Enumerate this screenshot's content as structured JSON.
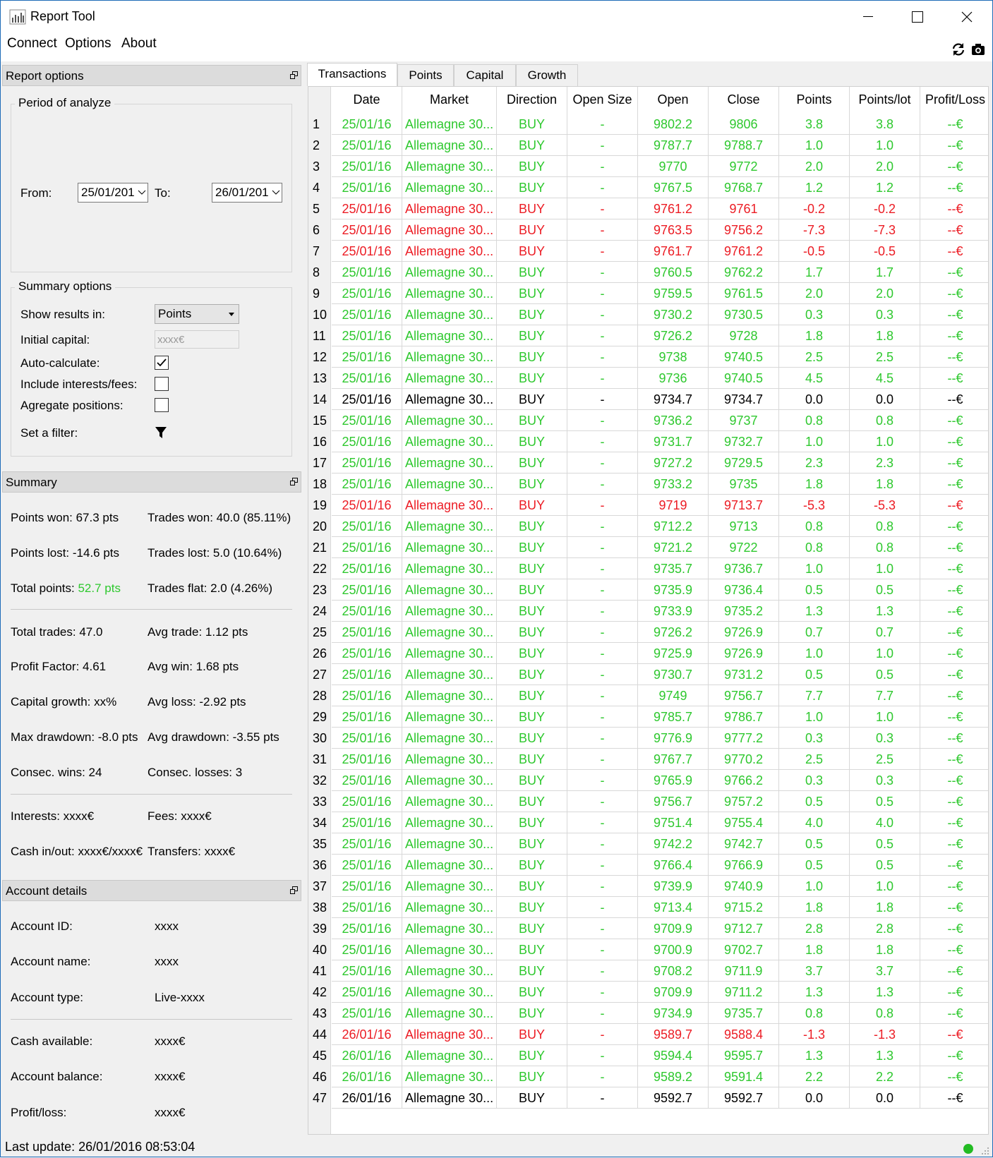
{
  "window": {
    "title": "Report Tool"
  },
  "menu": {
    "connect": "Connect",
    "options": "Options",
    "about": "About"
  },
  "report_options": {
    "title": "Report options",
    "period_group": "Period of analyze",
    "from_label": "From:",
    "from_value": "25/01/201",
    "to_label": "To:",
    "to_value": "26/01/201",
    "summary_group": "Summary options",
    "show_results_label": "Show results in:",
    "show_results_value": "Points",
    "initial_capital_label": "Initial capital:",
    "initial_capital_placeholder": "xxxx€",
    "auto_calculate_label": "Auto-calculate:",
    "auto_calculate_checked": true,
    "include_interests_label": "Include interests/fees:",
    "include_interests_checked": false,
    "agregate_label": "Agregate positions:",
    "agregate_checked": false,
    "filter_label": "Set a filter:"
  },
  "summary": {
    "title": "Summary",
    "points_won": "Points won: 67.3 pts",
    "trades_won": "Trades won: 40.0 (85.11%)",
    "points_lost": "Points lost: -14.6 pts",
    "trades_lost": "Trades lost: 5.0 (10.64%)",
    "total_points_label": "Total points: ",
    "total_points_value": "52.7 pts",
    "trades_flat": "Trades flat: 2.0 (4.26%)",
    "total_trades": "Total trades: 47.0",
    "avg_trade": "Avg trade: 1.12 pts",
    "profit_factor": "Profit Factor: 4.61",
    "avg_win": "Avg win: 1.68 pts",
    "capital_growth": "Capital growth: xx%",
    "avg_loss": "Avg loss: -2.92 pts",
    "max_drawdown": "Max drawdown: -8.0 pts",
    "avg_drawdown": "Avg drawdown: -3.55 pts",
    "consec_wins": "Consec. wins: 24",
    "consec_losses": "Consec. losses: 3",
    "interests": "Interests: xxxx€",
    "fees": "Fees: xxxx€",
    "cash_inout": "Cash in/out: xxxx€/xxxx€",
    "transfers": "Transfers: xxxx€"
  },
  "account": {
    "title": "Account details",
    "id_label": "Account ID:",
    "id_value": "xxxx",
    "name_label": "Account name:",
    "name_value": "xxxx",
    "type_label": "Account type:",
    "type_value": "Live-xxxx",
    "cash_label": "Cash available:",
    "cash_value": "xxxx€",
    "balance_label": "Account balance:",
    "balance_value": "xxxx€",
    "pl_label": "Profit/loss:",
    "pl_value": "xxxx€"
  },
  "tabs": [
    "Transactions",
    "Points",
    "Capital",
    "Growth"
  ],
  "colors": {
    "win": "#2ec82e",
    "loss": "#ec1c24",
    "flat": "#000000",
    "status_ok": "#22bb22"
  },
  "table": {
    "headers": [
      "Date",
      "Market",
      "Direction",
      "Open Size",
      "Open",
      "Close",
      "Points",
      "Points/lot",
      "Profit/Loss"
    ],
    "rows": [
      [
        "1",
        "25/01/16",
        "Allemagne 30...",
        "BUY",
        "-",
        "9802.2",
        "9806",
        "3.8",
        "3.8",
        "--€",
        "win"
      ],
      [
        "2",
        "25/01/16",
        "Allemagne 30...",
        "BUY",
        "-",
        "9787.7",
        "9788.7",
        "1.0",
        "1.0",
        "--€",
        "win"
      ],
      [
        "3",
        "25/01/16",
        "Allemagne 30...",
        "BUY",
        "-",
        "9770",
        "9772",
        "2.0",
        "2.0",
        "--€",
        "win"
      ],
      [
        "4",
        "25/01/16",
        "Allemagne 30...",
        "BUY",
        "-",
        "9767.5",
        "9768.7",
        "1.2",
        "1.2",
        "--€",
        "win"
      ],
      [
        "5",
        "25/01/16",
        "Allemagne 30...",
        "BUY",
        "-",
        "9761.2",
        "9761",
        "-0.2",
        "-0.2",
        "--€",
        "loss"
      ],
      [
        "6",
        "25/01/16",
        "Allemagne 30...",
        "BUY",
        "-",
        "9763.5",
        "9756.2",
        "-7.3",
        "-7.3",
        "--€",
        "loss"
      ],
      [
        "7",
        "25/01/16",
        "Allemagne 30...",
        "BUY",
        "-",
        "9761.7",
        "9761.2",
        "-0.5",
        "-0.5",
        "--€",
        "loss"
      ],
      [
        "8",
        "25/01/16",
        "Allemagne 30...",
        "BUY",
        "-",
        "9760.5",
        "9762.2",
        "1.7",
        "1.7",
        "--€",
        "win"
      ],
      [
        "9",
        "25/01/16",
        "Allemagne 30...",
        "BUY",
        "-",
        "9759.5",
        "9761.5",
        "2.0",
        "2.0",
        "--€",
        "win"
      ],
      [
        "10",
        "25/01/16",
        "Allemagne 30...",
        "BUY",
        "-",
        "9730.2",
        "9730.5",
        "0.3",
        "0.3",
        "--€",
        "win"
      ],
      [
        "11",
        "25/01/16",
        "Allemagne 30...",
        "BUY",
        "-",
        "9726.2",
        "9728",
        "1.8",
        "1.8",
        "--€",
        "win"
      ],
      [
        "12",
        "25/01/16",
        "Allemagne 30...",
        "BUY",
        "-",
        "9738",
        "9740.5",
        "2.5",
        "2.5",
        "--€",
        "win"
      ],
      [
        "13",
        "25/01/16",
        "Allemagne 30...",
        "BUY",
        "-",
        "9736",
        "9740.5",
        "4.5",
        "4.5",
        "--€",
        "win"
      ],
      [
        "14",
        "25/01/16",
        "Allemagne 30...",
        "BUY",
        "-",
        "9734.7",
        "9734.7",
        "0.0",
        "0.0",
        "--€",
        "flat"
      ],
      [
        "15",
        "25/01/16",
        "Allemagne 30...",
        "BUY",
        "-",
        "9736.2",
        "9737",
        "0.8",
        "0.8",
        "--€",
        "win"
      ],
      [
        "16",
        "25/01/16",
        "Allemagne 30...",
        "BUY",
        "-",
        "9731.7",
        "9732.7",
        "1.0",
        "1.0",
        "--€",
        "win"
      ],
      [
        "17",
        "25/01/16",
        "Allemagne 30...",
        "BUY",
        "-",
        "9727.2",
        "9729.5",
        "2.3",
        "2.3",
        "--€",
        "win"
      ],
      [
        "18",
        "25/01/16",
        "Allemagne 30...",
        "BUY",
        "-",
        "9733.2",
        "9735",
        "1.8",
        "1.8",
        "--€",
        "win"
      ],
      [
        "19",
        "25/01/16",
        "Allemagne 30...",
        "BUY",
        "-",
        "9719",
        "9713.7",
        "-5.3",
        "-5.3",
        "--€",
        "loss"
      ],
      [
        "20",
        "25/01/16",
        "Allemagne 30...",
        "BUY",
        "-",
        "9712.2",
        "9713",
        "0.8",
        "0.8",
        "--€",
        "win"
      ],
      [
        "21",
        "25/01/16",
        "Allemagne 30...",
        "BUY",
        "-",
        "9721.2",
        "9722",
        "0.8",
        "0.8",
        "--€",
        "win"
      ],
      [
        "22",
        "25/01/16",
        "Allemagne 30...",
        "BUY",
        "-",
        "9735.7",
        "9736.7",
        "1.0",
        "1.0",
        "--€",
        "win"
      ],
      [
        "23",
        "25/01/16",
        "Allemagne 30...",
        "BUY",
        "-",
        "9735.9",
        "9736.4",
        "0.5",
        "0.5",
        "--€",
        "win"
      ],
      [
        "24",
        "25/01/16",
        "Allemagne 30...",
        "BUY",
        "-",
        "9733.9",
        "9735.2",
        "1.3",
        "1.3",
        "--€",
        "win"
      ],
      [
        "25",
        "25/01/16",
        "Allemagne 30...",
        "BUY",
        "-",
        "9726.2",
        "9726.9",
        "0.7",
        "0.7",
        "--€",
        "win"
      ],
      [
        "26",
        "25/01/16",
        "Allemagne 30...",
        "BUY",
        "-",
        "9725.9",
        "9726.9",
        "1.0",
        "1.0",
        "--€",
        "win"
      ],
      [
        "27",
        "25/01/16",
        "Allemagne 30...",
        "BUY",
        "-",
        "9730.7",
        "9731.2",
        "0.5",
        "0.5",
        "--€",
        "win"
      ],
      [
        "28",
        "25/01/16",
        "Allemagne 30...",
        "BUY",
        "-",
        "9749",
        "9756.7",
        "7.7",
        "7.7",
        "--€",
        "win"
      ],
      [
        "29",
        "25/01/16",
        "Allemagne 30...",
        "BUY",
        "-",
        "9785.7",
        "9786.7",
        "1.0",
        "1.0",
        "--€",
        "win"
      ],
      [
        "30",
        "25/01/16",
        "Allemagne 30...",
        "BUY",
        "-",
        "9776.9",
        "9777.2",
        "0.3",
        "0.3",
        "--€",
        "win"
      ],
      [
        "31",
        "25/01/16",
        "Allemagne 30...",
        "BUY",
        "-",
        "9767.7",
        "9770.2",
        "2.5",
        "2.5",
        "--€",
        "win"
      ],
      [
        "32",
        "25/01/16",
        "Allemagne 30...",
        "BUY",
        "-",
        "9765.9",
        "9766.2",
        "0.3",
        "0.3",
        "--€",
        "win"
      ],
      [
        "33",
        "25/01/16",
        "Allemagne 30...",
        "BUY",
        "-",
        "9756.7",
        "9757.2",
        "0.5",
        "0.5",
        "--€",
        "win"
      ],
      [
        "34",
        "25/01/16",
        "Allemagne 30...",
        "BUY",
        "-",
        "9751.4",
        "9755.4",
        "4.0",
        "4.0",
        "--€",
        "win"
      ],
      [
        "35",
        "25/01/16",
        "Allemagne 30...",
        "BUY",
        "-",
        "9742.2",
        "9742.7",
        "0.5",
        "0.5",
        "--€",
        "win"
      ],
      [
        "36",
        "25/01/16",
        "Allemagne 30...",
        "BUY",
        "-",
        "9766.4",
        "9766.9",
        "0.5",
        "0.5",
        "--€",
        "win"
      ],
      [
        "37",
        "25/01/16",
        "Allemagne 30...",
        "BUY",
        "-",
        "9739.9",
        "9740.9",
        "1.0",
        "1.0",
        "--€",
        "win"
      ],
      [
        "38",
        "25/01/16",
        "Allemagne 30...",
        "BUY",
        "-",
        "9713.4",
        "9715.2",
        "1.8",
        "1.8",
        "--€",
        "win"
      ],
      [
        "39",
        "25/01/16",
        "Allemagne 30...",
        "BUY",
        "-",
        "9709.9",
        "9712.7",
        "2.8",
        "2.8",
        "--€",
        "win"
      ],
      [
        "40",
        "25/01/16",
        "Allemagne 30...",
        "BUY",
        "-",
        "9700.9",
        "9702.7",
        "1.8",
        "1.8",
        "--€",
        "win"
      ],
      [
        "41",
        "25/01/16",
        "Allemagne 30...",
        "BUY",
        "-",
        "9708.2",
        "9711.9",
        "3.7",
        "3.7",
        "--€",
        "win"
      ],
      [
        "42",
        "25/01/16",
        "Allemagne 30...",
        "BUY",
        "-",
        "9709.9",
        "9711.2",
        "1.3",
        "1.3",
        "--€",
        "win"
      ],
      [
        "43",
        "25/01/16",
        "Allemagne 30...",
        "BUY",
        "-",
        "9734.9",
        "9735.7",
        "0.8",
        "0.8",
        "--€",
        "win"
      ],
      [
        "44",
        "26/01/16",
        "Allemagne 30...",
        "BUY",
        "-",
        "9589.7",
        "9588.4",
        "-1.3",
        "-1.3",
        "--€",
        "loss"
      ],
      [
        "45",
        "26/01/16",
        "Allemagne 30...",
        "BUY",
        "-",
        "9594.4",
        "9595.7",
        "1.3",
        "1.3",
        "--€",
        "win"
      ],
      [
        "46",
        "26/01/16",
        "Allemagne 30...",
        "BUY",
        "-",
        "9589.2",
        "9591.4",
        "2.2",
        "2.2",
        "--€",
        "win"
      ],
      [
        "47",
        "26/01/16",
        "Allemagne 30...",
        "BUY",
        "-",
        "9592.7",
        "9592.7",
        "0.0",
        "0.0",
        "--€",
        "flat"
      ]
    ]
  },
  "status": {
    "text": "Last update: 26/01/2016 08:53:04"
  }
}
